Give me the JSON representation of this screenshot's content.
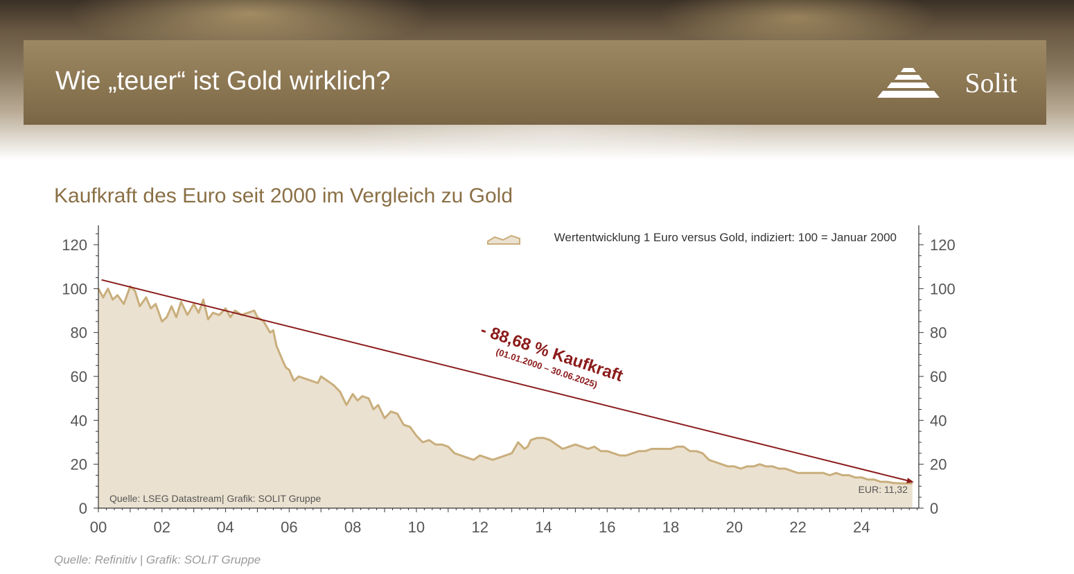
{
  "header": {
    "title": "Wie „teuer“ ist Gold wirklich?",
    "logo_text": "Solit"
  },
  "subtitle": "Kaufkraft des Euro seit 2000 im Vergleich zu Gold",
  "footer": "Quelle: Refinitiv | Grafik: SOLIT Gruppe",
  "colors": {
    "area_fill": "#ebe1d0",
    "area_line": "#c9ae7c",
    "trend_arrow": "#8b1a1a",
    "banner": "#8b7652"
  },
  "chart_data": {
    "type": "area",
    "legend": "Wertentwicklung 1 Euro versus Gold, indiziert: 100 = Januar 2000",
    "legend_position": "top-right",
    "source_note": "Quelle: LSEG Datastream| Grafik: SOLIT Gruppe",
    "end_label": "EUR: 11,32",
    "annotation": {
      "main": "- 88,68 % Kaufkraft",
      "sub": "(01.01.2000 – 30.06.2025)",
      "trend_start": [
        0.1,
        104
      ],
      "trend_end": [
        25.6,
        12
      ]
    },
    "xlim": [
      0,
      25.8
    ],
    "ylim": [
      0,
      120
    ],
    "x_ticks": [
      0,
      2,
      4,
      6,
      8,
      10,
      12,
      14,
      16,
      18,
      20,
      22,
      24
    ],
    "x_tick_labels": [
      "00",
      "02",
      "04",
      "06",
      "08",
      "10",
      "12",
      "14",
      "16",
      "18",
      "20",
      "22",
      "24"
    ],
    "y_ticks": [
      0,
      20,
      40,
      60,
      80,
      100,
      120
    ],
    "y_tick_labels": [
      "0",
      "20",
      "40",
      "60",
      "80",
      "100",
      "120"
    ],
    "grid": false,
    "series": [
      {
        "x": [
          0,
          0.15,
          0.3,
          0.45,
          0.6,
          0.8,
          1.0,
          1.15,
          1.3,
          1.5,
          1.65,
          1.8,
          2.0,
          2.15,
          2.3,
          2.45,
          2.6,
          2.8,
          3.0,
          3.15,
          3.3,
          3.45,
          3.6,
          3.8,
          4.0,
          4.15,
          4.3,
          4.5,
          4.7,
          4.9,
          5.0,
          5.2,
          5.4,
          5.5,
          5.6,
          5.8,
          5.9,
          6.0,
          6.15,
          6.3,
          6.5,
          6.7,
          6.9,
          7.0,
          7.2,
          7.4,
          7.6,
          7.8,
          8.0,
          8.15,
          8.3,
          8.5,
          8.65,
          8.8,
          9.0,
          9.2,
          9.4,
          9.6,
          9.8,
          10.0,
          10.2,
          10.4,
          10.6,
          10.8,
          11.0,
          11.2,
          11.4,
          11.6,
          11.8,
          12.0,
          12.2,
          12.4,
          12.6,
          12.8,
          13.0,
          13.2,
          13.4,
          13.5,
          13.6,
          13.8,
          14.0,
          14.2,
          14.4,
          14.6,
          14.8,
          15.0,
          15.2,
          15.4,
          15.6,
          15.8,
          16.0,
          16.2,
          16.4,
          16.6,
          16.8,
          17.0,
          17.2,
          17.4,
          17.6,
          17.8,
          18.0,
          18.2,
          18.4,
          18.6,
          18.8,
          19.0,
          19.2,
          19.4,
          19.6,
          19.8,
          20.0,
          20.2,
          20.4,
          20.6,
          20.8,
          21.0,
          21.2,
          21.4,
          21.6,
          21.8,
          22.0,
          22.2,
          22.4,
          22.6,
          22.8,
          23.0,
          23.2,
          23.4,
          23.6,
          23.8,
          24.0,
          24.2,
          24.4,
          24.6,
          24.8,
          25.0,
          25.2,
          25.4,
          25.6
        ],
        "values": [
          100,
          96,
          100,
          95,
          97,
          93,
          101,
          99,
          92,
          96,
          91,
          93,
          85,
          87,
          92,
          87,
          94,
          88,
          93,
          89,
          95,
          86,
          89,
          88,
          91,
          87,
          90,
          88,
          89,
          90,
          87,
          85,
          80,
          81,
          74,
          67,
          64,
          63,
          58,
          60,
          59,
          58,
          57,
          60,
          58,
          56,
          53,
          47,
          52,
          49,
          51,
          50,
          45,
          47,
          41,
          44,
          43,
          38,
          37,
          33,
          30,
          31,
          29,
          29,
          28,
          25,
          24,
          23,
          22,
          24,
          23,
          22,
          23,
          24,
          25,
          30,
          27,
          28,
          31,
          32,
          32,
          31,
          29,
          27,
          28,
          29,
          28,
          27,
          28,
          26,
          26,
          25,
          24,
          24,
          25,
          26,
          26,
          27,
          27,
          27,
          27,
          28,
          28,
          26,
          26,
          25,
          22,
          21,
          20,
          19,
          19,
          18,
          19,
          19,
          20,
          19,
          19,
          18,
          18,
          17,
          16,
          16,
          16,
          16,
          16,
          15,
          16,
          15,
          15,
          14,
          14,
          13,
          13,
          12,
          12,
          11.5,
          11.32,
          11.32,
          11.32
        ]
      }
    ]
  }
}
